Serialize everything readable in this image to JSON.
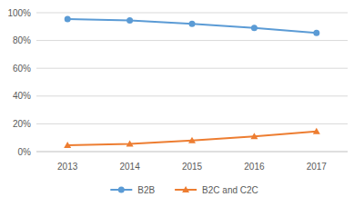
{
  "chart_data": {
    "type": "line",
    "categories": [
      "2013",
      "2014",
      "2015",
      "2016",
      "2017"
    ],
    "series": [
      {
        "name": "B2B",
        "color": "#5b9bd5",
        "marker": "circle",
        "values": [
          95.5,
          94.5,
          92,
          89,
          85.5
        ]
      },
      {
        "name": "B2C and C2C",
        "color": "#ed7d31",
        "marker": "triangle",
        "values": [
          4.5,
          5.5,
          8,
          11,
          14.5
        ]
      }
    ],
    "ylim": [
      0,
      100
    ],
    "yticks": [
      {
        "value": 0,
        "label": "0%"
      },
      {
        "value": 20,
        "label": "20%"
      },
      {
        "value": 40,
        "label": "40%"
      },
      {
        "value": 60,
        "label": "60%"
      },
      {
        "value": 80,
        "label": "80%"
      },
      {
        "value": 100,
        "label": "100%"
      }
    ],
    "grid": true,
    "legend": "bottom"
  }
}
